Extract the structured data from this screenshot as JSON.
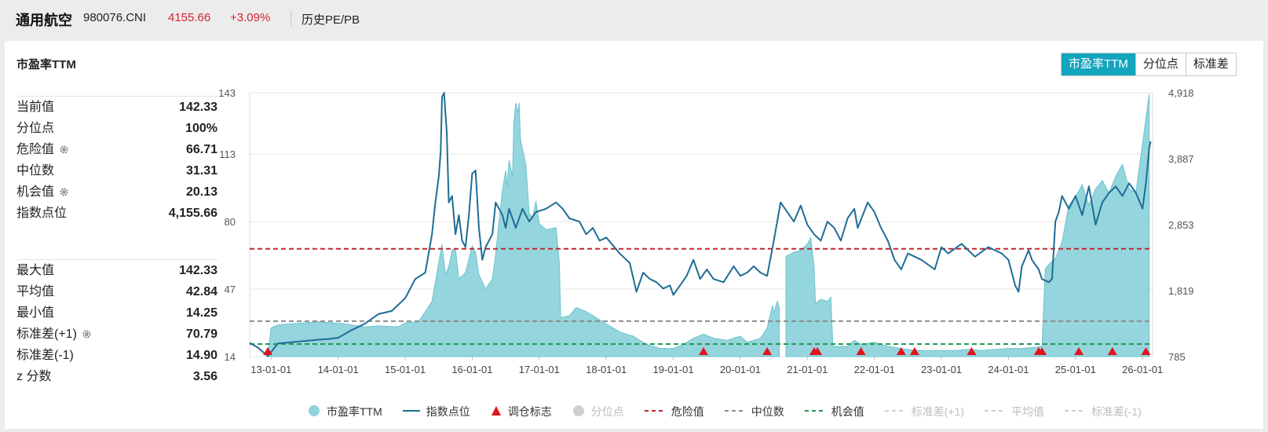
{
  "header": {
    "name": "通用航空",
    "code": "980076.CNI",
    "price": "4155.66",
    "change": "+3.09%",
    "tab": "历史PE/PB"
  },
  "card": {
    "title": "市盈率TTM",
    "modes": [
      "市盈率TTM",
      "分位点",
      "标准差"
    ]
  },
  "stats_top": [
    {
      "label": "当前值",
      "value": "142.33",
      "gear": false
    },
    {
      "label": "分位点",
      "value": "100%",
      "gear": false
    },
    {
      "label": "危险值",
      "value": "66.71",
      "gear": true
    },
    {
      "label": "中位数",
      "value": "31.31",
      "gear": false
    },
    {
      "label": "机会值",
      "value": "20.13",
      "gear": true
    },
    {
      "label": "指数点位",
      "value": "4,155.66",
      "gear": false
    }
  ],
  "stats_bottom": [
    {
      "label": "最大值",
      "value": "142.33",
      "gear": false
    },
    {
      "label": "平均值",
      "value": "42.84",
      "gear": false
    },
    {
      "label": "最小值",
      "value": "14.25",
      "gear": false
    },
    {
      "label": "标准差(+1)",
      "value": "70.79",
      "gear": true
    },
    {
      "label": "标准差(-1)",
      "value": "14.90",
      "gear": false
    },
    {
      "label": "z 分数",
      "value": "3.56",
      "gear": false
    }
  ],
  "colors": {
    "pe_fill": "#8fd3db",
    "pe_line": "#6cc4cf",
    "index_line": "#1f6d95",
    "danger": "#c0282e",
    "median": "#8c8c8c",
    "opportunity": "#1f9a52",
    "marker": "#e0141d",
    "accent": "#13a4be"
  },
  "chart_data": {
    "type": "area",
    "x_ticks": [
      "13-01-01",
      "14-01-01",
      "15-01-01",
      "16-01-01",
      "17-01-01",
      "18-01-01",
      "19-01-01",
      "20-01-01",
      "21-01-01",
      "22-01-01",
      "23-01-01",
      "24-01-01",
      "25-01-01",
      "26-01-01"
    ],
    "y_left_ticks": [
      "143",
      "113",
      "80",
      "47",
      "14"
    ],
    "y_right_ticks": [
      "4,918",
      "3,887",
      "2,853",
      "1,819",
      "785"
    ],
    "y_left_range": [
      14,
      143
    ],
    "y_right_range": [
      785,
      4918
    ],
    "x_range": [
      2012.68,
      2026.15
    ],
    "reference_lines": [
      {
        "name": "危险值",
        "value": 66.71
      },
      {
        "name": "中位数",
        "value": 31.31
      },
      {
        "name": "机会值",
        "value": 20.13
      }
    ],
    "series": [
      {
        "name": "市盈率TTM",
        "axis": "left",
        "gaps_after": [
          2020.58
        ],
        "points": [
          [
            2012.95,
            14.5
          ],
          [
            2013.0,
            28
          ],
          [
            2013.1,
            29.5
          ],
          [
            2013.3,
            30
          ],
          [
            2013.5,
            30.5
          ],
          [
            2013.7,
            31
          ],
          [
            2013.9,
            30.5
          ],
          [
            2014.1,
            30
          ],
          [
            2014.4,
            28.5
          ],
          [
            2014.6,
            29
          ],
          [
            2014.9,
            28.5
          ],
          [
            2015.0,
            30.5
          ],
          [
            2015.2,
            31
          ],
          [
            2015.4,
            41
          ],
          [
            2015.5,
            60
          ],
          [
            2015.55,
            69
          ],
          [
            2015.6,
            54
          ],
          [
            2015.65,
            58
          ],
          [
            2015.7,
            66
          ],
          [
            2015.75,
            67
          ],
          [
            2015.8,
            52
          ],
          [
            2015.9,
            55
          ],
          [
            2016.0,
            68
          ],
          [
            2016.05,
            65
          ],
          [
            2016.1,
            54
          ],
          [
            2016.2,
            47
          ],
          [
            2016.3,
            52
          ],
          [
            2016.35,
            64
          ],
          [
            2016.4,
            80
          ],
          [
            2016.45,
            95
          ],
          [
            2016.5,
            105
          ],
          [
            2016.52,
            97
          ],
          [
            2016.55,
            110
          ],
          [
            2016.6,
            102
          ],
          [
            2016.62,
            128
          ],
          [
            2016.65,
            138
          ],
          [
            2016.68,
            133
          ],
          [
            2016.7,
            138
          ],
          [
            2016.72,
            120
          ],
          [
            2016.8,
            108
          ],
          [
            2016.85,
            84
          ],
          [
            2016.9,
            82
          ],
          [
            2016.95,
            90
          ],
          [
            2017.0,
            79
          ],
          [
            2017.1,
            76
          ],
          [
            2017.25,
            77
          ],
          [
            2017.3,
            60
          ],
          [
            2017.32,
            33
          ],
          [
            2017.45,
            34
          ],
          [
            2017.55,
            38
          ],
          [
            2017.7,
            36
          ],
          [
            2017.85,
            33
          ],
          [
            2018.0,
            30
          ],
          [
            2018.2,
            26
          ],
          [
            2018.4,
            24
          ],
          [
            2018.6,
            20
          ],
          [
            2018.8,
            18
          ],
          [
            2019.0,
            18
          ],
          [
            2019.15,
            20
          ],
          [
            2019.3,
            23
          ],
          [
            2019.45,
            25
          ],
          [
            2019.6,
            23
          ],
          [
            2019.8,
            22
          ],
          [
            2020.0,
            24
          ],
          [
            2020.1,
            21
          ],
          [
            2020.3,
            23
          ],
          [
            2020.4,
            28
          ],
          [
            2020.48,
            39
          ],
          [
            2020.5,
            35
          ],
          [
            2020.55,
            41
          ],
          [
            2020.58,
            38
          ],
          [
            2020.68,
            63
          ],
          [
            2020.8,
            65
          ],
          [
            2020.9,
            66
          ],
          [
            2021.0,
            69
          ],
          [
            2021.05,
            72
          ],
          [
            2021.1,
            58
          ],
          [
            2021.12,
            40
          ],
          [
            2021.2,
            42
          ],
          [
            2021.3,
            41
          ],
          [
            2021.35,
            43
          ],
          [
            2021.38,
            19
          ],
          [
            2021.5,
            19
          ],
          [
            2021.6,
            19
          ],
          [
            2021.7,
            22
          ],
          [
            2021.8,
            20
          ],
          [
            2022.0,
            21
          ],
          [
            2022.2,
            19
          ],
          [
            2022.4,
            18
          ],
          [
            2022.6,
            17
          ],
          [
            2022.8,
            17
          ],
          [
            2023.0,
            17
          ],
          [
            2023.2,
            17
          ],
          [
            2023.4,
            17.5
          ],
          [
            2023.6,
            17
          ],
          [
            2023.8,
            17.5
          ],
          [
            2024.0,
            18
          ],
          [
            2024.2,
            18
          ],
          [
            2024.4,
            18.5
          ],
          [
            2024.5,
            19
          ],
          [
            2024.55,
            57
          ],
          [
            2024.6,
            59
          ],
          [
            2024.7,
            62
          ],
          [
            2024.8,
            70
          ],
          [
            2024.9,
            88
          ],
          [
            2025.0,
            92
          ],
          [
            2025.1,
            98
          ],
          [
            2025.2,
            88
          ],
          [
            2025.3,
            96
          ],
          [
            2025.4,
            100
          ],
          [
            2025.5,
            94
          ],
          [
            2025.6,
            102
          ],
          [
            2025.7,
            108
          ],
          [
            2025.8,
            96
          ],
          [
            2025.9,
            94
          ],
          [
            2026.0,
            118
          ],
          [
            2026.1,
            142.33
          ]
        ]
      },
      {
        "name": "指数点位",
        "axis": "right",
        "points": [
          [
            2012.68,
            1000
          ],
          [
            2012.8,
            930
          ],
          [
            2012.95,
            790
          ],
          [
            2013.1,
            990
          ],
          [
            2013.3,
            1010
          ],
          [
            2013.5,
            1030
          ],
          [
            2013.7,
            1050
          ],
          [
            2013.85,
            1060
          ],
          [
            2014.0,
            1080
          ],
          [
            2014.2,
            1200
          ],
          [
            2014.4,
            1300
          ],
          [
            2014.6,
            1450
          ],
          [
            2014.8,
            1500
          ],
          [
            2015.0,
            1700
          ],
          [
            2015.15,
            2000
          ],
          [
            2015.3,
            2100
          ],
          [
            2015.4,
            2700
          ],
          [
            2015.45,
            3200
          ],
          [
            2015.5,
            3600
          ],
          [
            2015.53,
            4000
          ],
          [
            2015.55,
            4850
          ],
          [
            2015.58,
            4918
          ],
          [
            2015.62,
            4300
          ],
          [
            2015.65,
            3200
          ],
          [
            2015.7,
            3300
          ],
          [
            2015.75,
            2700
          ],
          [
            2015.8,
            3000
          ],
          [
            2015.85,
            2600
          ],
          [
            2015.9,
            2500
          ],
          [
            2015.95,
            3000
          ],
          [
            2016.0,
            3650
          ],
          [
            2016.05,
            3700
          ],
          [
            2016.1,
            2800
          ],
          [
            2016.15,
            2300
          ],
          [
            2016.2,
            2500
          ],
          [
            2016.3,
            2700
          ],
          [
            2016.35,
            3200
          ],
          [
            2016.45,
            3000
          ],
          [
            2016.5,
            2800
          ],
          [
            2016.55,
            3100
          ],
          [
            2016.65,
            2800
          ],
          [
            2016.75,
            3100
          ],
          [
            2016.85,
            2900
          ],
          [
            2016.95,
            3050
          ],
          [
            2017.1,
            3100
          ],
          [
            2017.25,
            3200
          ],
          [
            2017.35,
            3100
          ],
          [
            2017.45,
            2950
          ],
          [
            2017.6,
            2900
          ],
          [
            2017.7,
            2700
          ],
          [
            2017.8,
            2800
          ],
          [
            2017.9,
            2600
          ],
          [
            2018.0,
            2650
          ],
          [
            2018.2,
            2400
          ],
          [
            2018.35,
            2250
          ],
          [
            2018.45,
            1800
          ],
          [
            2018.55,
            2100
          ],
          [
            2018.65,
            2000
          ],
          [
            2018.75,
            1950
          ],
          [
            2018.85,
            1850
          ],
          [
            2018.95,
            1900
          ],
          [
            2019.0,
            1750
          ],
          [
            2019.1,
            1900
          ],
          [
            2019.2,
            2050
          ],
          [
            2019.3,
            2300
          ],
          [
            2019.4,
            2000
          ],
          [
            2019.5,
            2150
          ],
          [
            2019.6,
            2000
          ],
          [
            2019.75,
            1950
          ],
          [
            2019.9,
            2200
          ],
          [
            2020.0,
            2050
          ],
          [
            2020.1,
            2100
          ],
          [
            2020.2,
            2200
          ],
          [
            2020.3,
            2100
          ],
          [
            2020.4,
            2050
          ],
          [
            2020.5,
            2600
          ],
          [
            2020.6,
            3200
          ],
          [
            2020.7,
            3050
          ],
          [
            2020.8,
            2900
          ],
          [
            2020.9,
            3150
          ],
          [
            2021.0,
            2850
          ],
          [
            2021.1,
            2700
          ],
          [
            2021.2,
            2600
          ],
          [
            2021.3,
            2900
          ],
          [
            2021.4,
            2800
          ],
          [
            2021.5,
            2600
          ],
          [
            2021.6,
            2950
          ],
          [
            2021.7,
            3100
          ],
          [
            2021.75,
            2800
          ],
          [
            2021.9,
            3200
          ],
          [
            2022.0,
            3050
          ],
          [
            2022.1,
            2800
          ],
          [
            2022.2,
            2600
          ],
          [
            2022.3,
            2300
          ],
          [
            2022.4,
            2150
          ],
          [
            2022.5,
            2400
          ],
          [
            2022.7,
            2300
          ],
          [
            2022.9,
            2150
          ],
          [
            2023.0,
            2500
          ],
          [
            2023.1,
            2400
          ],
          [
            2023.3,
            2550
          ],
          [
            2023.5,
            2350
          ],
          [
            2023.7,
            2500
          ],
          [
            2023.9,
            2400
          ],
          [
            2024.0,
            2300
          ],
          [
            2024.1,
            1900
          ],
          [
            2024.15,
            1800
          ],
          [
            2024.2,
            2200
          ],
          [
            2024.3,
            2450
          ],
          [
            2024.35,
            2300
          ],
          [
            2024.45,
            2150
          ],
          [
            2024.5,
            2000
          ],
          [
            2024.6,
            1950
          ],
          [
            2024.65,
            2000
          ],
          [
            2024.7,
            2900
          ],
          [
            2024.75,
            3050
          ],
          [
            2024.8,
            3300
          ],
          [
            2024.9,
            3100
          ],
          [
            2025.0,
            3300
          ],
          [
            2025.1,
            3000
          ],
          [
            2025.2,
            3450
          ],
          [
            2025.3,
            2850
          ],
          [
            2025.4,
            3200
          ],
          [
            2025.5,
            3350
          ],
          [
            2025.6,
            3450
          ],
          [
            2025.7,
            3300
          ],
          [
            2025.8,
            3500
          ],
          [
            2025.9,
            3350
          ],
          [
            2026.0,
            3100
          ],
          [
            2026.05,
            3500
          ],
          [
            2026.1,
            4050
          ],
          [
            2026.12,
            4155.66
          ]
        ]
      },
      {
        "name": "调仓标志",
        "type": "marker",
        "x": [
          2012.95,
          2019.45,
          2020.4,
          2021.1,
          2021.15,
          2021.8,
          2022.4,
          2022.6,
          2023.45,
          2024.45,
          2024.5,
          2025.05,
          2025.55,
          2026.05
        ]
      }
    ],
    "legend": [
      {
        "name": "市盈率TTM",
        "kind": "circle",
        "on": true
      },
      {
        "name": "指数点位",
        "kind": "line",
        "on": true
      },
      {
        "name": "调仓标志",
        "kind": "triangle",
        "on": true
      },
      {
        "name": "分位点",
        "kind": "circle",
        "on": false
      },
      {
        "name": "危险值",
        "kind": "dash-danger",
        "on": true
      },
      {
        "name": "中位数",
        "kind": "dash-median",
        "on": true
      },
      {
        "name": "机会值",
        "kind": "dash-opportunity",
        "on": true
      },
      {
        "name": "标准差(+1)",
        "kind": "dash-off",
        "on": false
      },
      {
        "name": "平均值",
        "kind": "dash-off",
        "on": false
      },
      {
        "name": "标准差(-1)",
        "kind": "dash-off",
        "on": false
      }
    ],
    "legend_position": "bottom"
  }
}
